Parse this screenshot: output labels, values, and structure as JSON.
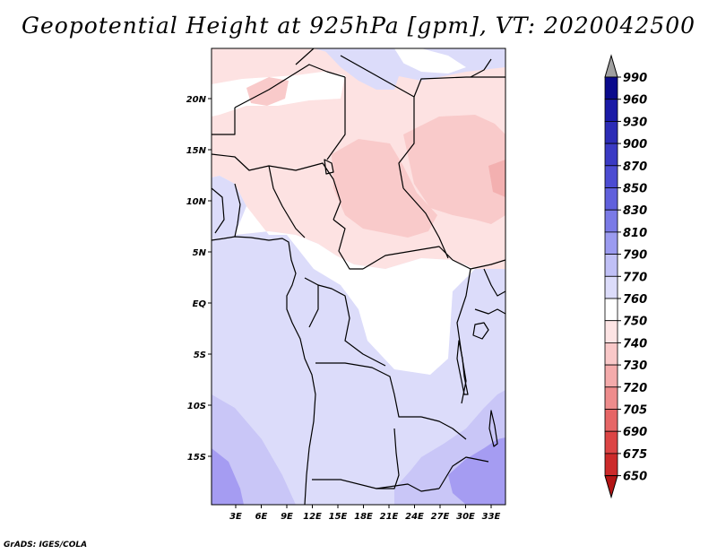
{
  "title": "Geopotential Height at 925hPa [gpm], VT: 2020042500",
  "credit": "GrADS: IGES/COLA",
  "map": {
    "lat_labels": [
      "20N",
      "15N",
      "10N",
      "5N",
      "EQ",
      "5S",
      "10S",
      "15S"
    ],
    "lon_labels": [
      "3E",
      "6E",
      "9E",
      "12E",
      "15E",
      "18E",
      "21E",
      "24E",
      "27E",
      "30E",
      "33E"
    ]
  },
  "colorbar": {
    "levels": [
      "990",
      "960",
      "930",
      "900",
      "870",
      "850",
      "830",
      "810",
      "790",
      "770",
      "760",
      "750",
      "740",
      "730",
      "720",
      "705",
      "690",
      "675",
      "650"
    ],
    "colors": [
      "#0a0a8c",
      "#1a1aa6",
      "#2c2cb6",
      "#3a3ac4",
      "#4c4cd2",
      "#6060dc",
      "#7a7ae6",
      "#9b9bf0",
      "#c0c0f6",
      "#dcdcfa",
      "#ffffff",
      "#fde4e4",
      "#f9c8c8",
      "#f4abab",
      "#ee8c8c",
      "#e66666",
      "#dc4545",
      "#cc2a2a",
      "#b31515"
    ],
    "top_color": "#a0a0a0",
    "bottom_color": "#b31515"
  },
  "field_colors": {
    "deep_blue": "#a59cf2",
    "mid_blue": "#c9c6f7",
    "light_blue": "#dcdcfa",
    "white": "#ffffff",
    "light_pink": "#fde2e2",
    "pink": "#f9caca",
    "deep_pink": "#f3b0b0"
  }
}
